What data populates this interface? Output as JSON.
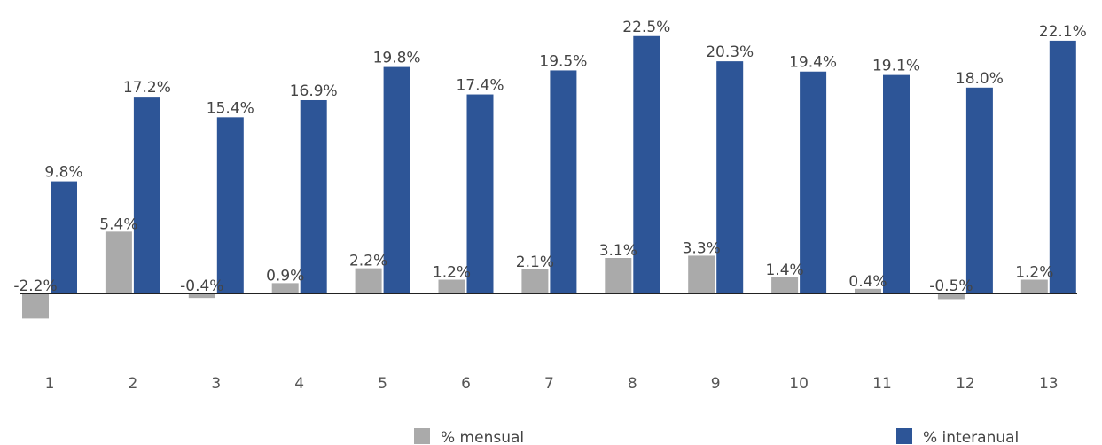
{
  "chart_data": {
    "type": "bar",
    "title": "",
    "xlabel": "",
    "ylabel": "",
    "categories": [
      "1",
      "2",
      "3",
      "4",
      "5",
      "6",
      "7",
      "8",
      "9",
      "10",
      "11",
      "12",
      "13"
    ],
    "series": [
      {
        "name": "% mensual",
        "color": "#aaaaaa",
        "values": [
          -2.2,
          5.4,
          -0.4,
          0.9,
          2.2,
          1.2,
          2.1,
          3.1,
          3.3,
          1.4,
          0.4,
          -0.5,
          1.2
        ],
        "labels": [
          "-2.2%",
          "5.4%",
          "-0.4%",
          "0.9%",
          "2.2%",
          "1.2%",
          "2.1%",
          "3.1%",
          "3.3%",
          "1.4%",
          "0.4%",
          "-0.5%",
          "1.2%"
        ]
      },
      {
        "name": "% interanual",
        "color": "#2d5597",
        "values": [
          9.8,
          17.2,
          15.4,
          16.9,
          19.8,
          17.4,
          19.5,
          22.5,
          20.3,
          19.4,
          19.1,
          18.0,
          22.1
        ],
        "labels": [
          "9.8%",
          "17.2%",
          "15.4%",
          "16.9%",
          "19.8%",
          "17.4%",
          "19.5%",
          "22.5%",
          "20.3%",
          "19.4%",
          "19.1%",
          "18.0%",
          "22.1%"
        ]
      }
    ],
    "ylim": [
      -2.5,
      23
    ],
    "grid": false,
    "axis_color": "#222222",
    "legend_position": "bottom"
  }
}
